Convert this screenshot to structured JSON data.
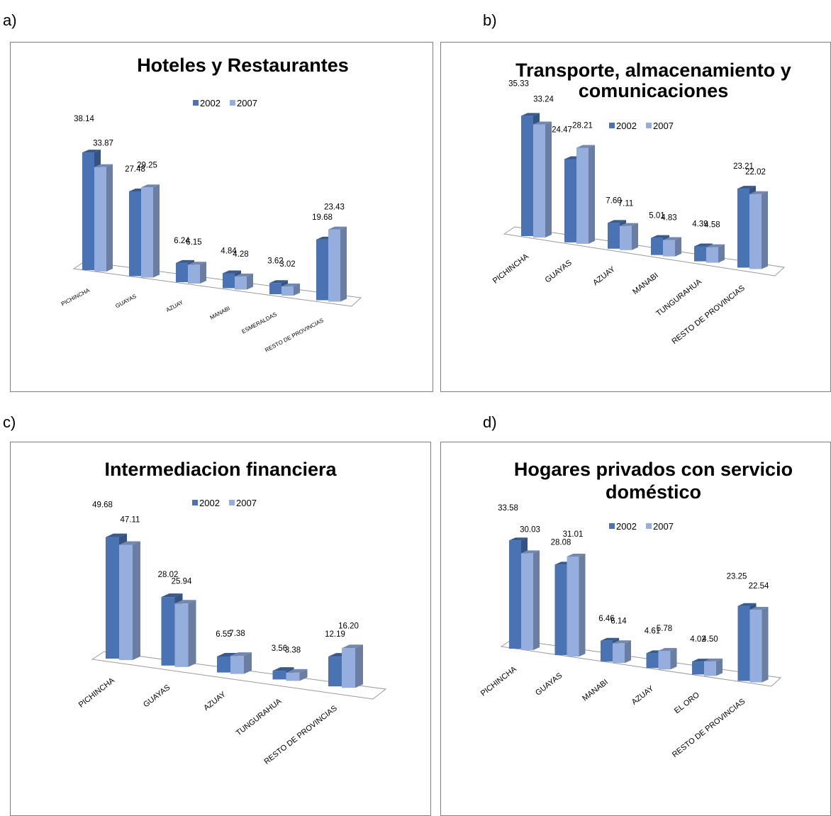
{
  "panels": [
    "a)",
    "b)",
    "c)",
    "d)"
  ],
  "colors": {
    "s2002": "#4a73b3",
    "s2007": "#95aede"
  },
  "chart_data": [
    {
      "type": "bar",
      "title": [
        "Hoteles y Restaurantes"
      ],
      "legend_position": "top",
      "categories": [
        "PICHINCHA",
        "GUAYAS",
        "AZUAY",
        "MANABI",
        "ESMERALDAS",
        "RESTO DE PROVINCIAS"
      ],
      "series": [
        {
          "name": "2002",
          "values": [
            38.14,
            27.48,
            6.24,
            4.84,
            3.62,
            19.68
          ],
          "labels": [
            "38.14",
            "27.48",
            "6.24",
            "4.84",
            "3.62",
            "19.68"
          ]
        },
        {
          "name": "2007",
          "values": [
            33.87,
            29.25,
            6.15,
            4.28,
            3.02,
            23.43
          ],
          "labels": [
            "33.87",
            "29.25",
            "6.15",
            "4.28",
            "3.02",
            "23.43"
          ]
        }
      ]
    },
    {
      "type": "bar",
      "title": [
        "Transporte, almacenamiento y",
        "comunicaciones"
      ],
      "legend_position": "top",
      "categories": [
        "PICHINCHA",
        "GUAYAS",
        "AZUAY",
        "MANABI",
        "TUNGURAHUA",
        "RESTO DE PROVINCIAS"
      ],
      "series": [
        {
          "name": "2002",
          "values": [
            35.33,
            24.47,
            7.6,
            5.01,
            4.39,
            23.21
          ],
          "labels": [
            "35.33",
            "24.47",
            "7.60",
            "5.01",
            "4.39",
            "23.21"
          ]
        },
        {
          "name": "2007",
          "values": [
            33.24,
            28.21,
            7.11,
            4.83,
            4.58,
            22.02
          ],
          "labels": [
            "33.24",
            "28.21",
            "7.11",
            "4.83",
            "4.58",
            "22.02"
          ]
        }
      ]
    },
    {
      "type": "bar",
      "title": [
        "Intermediacion financiera"
      ],
      "legend_position": "top",
      "categories": [
        "PICHINCHA",
        "GUAYAS",
        "AZUAY",
        "TUNGURAHUA",
        "RESTO DE PROVINCIAS"
      ],
      "series": [
        {
          "name": "2002",
          "values": [
            49.68,
            28.02,
            6.55,
            3.56,
            12.19
          ],
          "labels": [
            "49.68",
            "28.02",
            "6.55",
            "3.56",
            "12.19"
          ]
        },
        {
          "name": "2007",
          "values": [
            47.11,
            25.94,
            7.38,
            3.38,
            16.2
          ],
          "labels": [
            "47.11",
            "25.94",
            "7.38",
            "3.38",
            "16.20"
          ]
        }
      ]
    },
    {
      "type": "bar",
      "title": [
        "Hogares privados con servicio",
        "doméstico"
      ],
      "legend_position": "top",
      "categories": [
        "PICHINCHA",
        "GUAYAS",
        "MANABI",
        "AZUAY",
        "EL ORO",
        "RESTO DE PROVINCIAS"
      ],
      "series": [
        {
          "name": "2002",
          "values": [
            33.58,
            28.08,
            6.46,
            4.61,
            4.02,
            23.25
          ],
          "labels": [
            "33.58",
            "28.08",
            "6.46",
            "4.61",
            "4.02",
            "23.25"
          ]
        },
        {
          "name": "2007",
          "values": [
            30.03,
            31.01,
            6.14,
            5.78,
            4.5,
            22.54
          ],
          "labels": [
            "30.03",
            "31.01",
            "6.14",
            "5.78",
            "4.50",
            "22.54"
          ]
        }
      ]
    }
  ]
}
